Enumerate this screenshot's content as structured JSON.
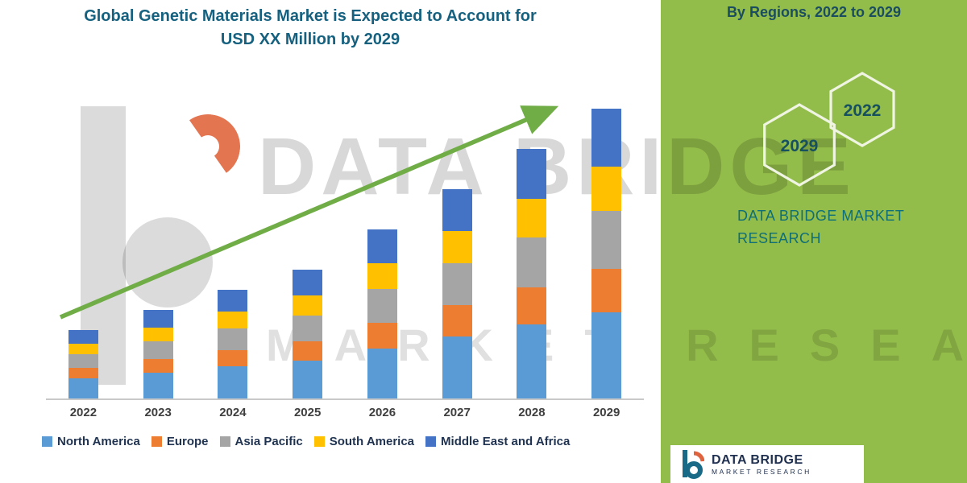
{
  "page": {
    "title_line1": "Global Genetic Materials Market is Expected to Account for",
    "title_line2": "USD XX Million by 2029"
  },
  "side_panel": {
    "heading": "By Regions, 2022 to 2029",
    "panel_color": "#93BD4A",
    "hexagon_years": [
      {
        "label": "2029"
      },
      {
        "label": "2022"
      }
    ],
    "brand_line1": "DATA BRIDGE MARKET",
    "brand_line2": "RESEARCH"
  },
  "watermark": {
    "big_text": "DATA BRIDGE",
    "sub_text": "MARKET RESEARCH"
  },
  "footer_logo": {
    "name_line": "DATA BRIDGE",
    "sub_line": "MARKET RESEARCH"
  },
  "chart_data": {
    "type": "bar",
    "stacked": true,
    "title": "Global Genetic Materials Market is Expected to Account for USD XX Million by 2029",
    "categories": [
      "2022",
      "2023",
      "2024",
      "2025",
      "2026",
      "2027",
      "2028",
      "2029"
    ],
    "series": [
      {
        "name": "North America",
        "color": "#5B9BD5",
        "values": [
          25,
          32,
          40,
          47,
          62,
          77,
          92,
          107
        ]
      },
      {
        "name": "Europe",
        "color": "#ED7D31",
        "values": [
          13,
          17,
          20,
          24,
          32,
          39,
          46,
          54
        ]
      },
      {
        "name": "Asia Pacific",
        "color": "#A5A5A5",
        "values": [
          17,
          22,
          27,
          32,
          42,
          52,
          62,
          72
        ]
      },
      {
        "name": "South America",
        "color": "#FFC000",
        "values": [
          13,
          17,
          21,
          25,
          32,
          40,
          48,
          55
        ]
      },
      {
        "name": "Middle East and Africa",
        "color": "#4472C4",
        "values": [
          17,
          22,
          27,
          32,
          42,
          52,
          62,
          72
        ]
      }
    ],
    "totals": [
      85,
      110,
      135,
      160,
      210,
      260,
      310,
      360
    ],
    "value_axis_visible": false,
    "values_note": "relative heights; market value shown only as USD XX Million",
    "legend_position": "bottom",
    "trend_arrow": {
      "present": true,
      "direction": "up",
      "color": "#70AD47"
    }
  }
}
